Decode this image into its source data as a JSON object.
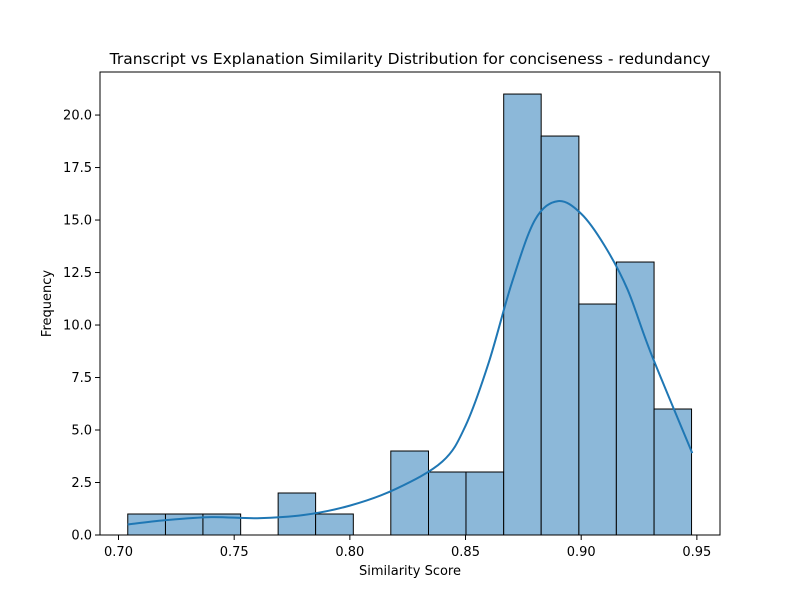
{
  "chart_data": {
    "type": "bar",
    "subtype": "histogram-with-kde",
    "title": "Transcript vs Explanation Similarity Distribution for conciseness - redundancy",
    "xlabel": "Similarity Score",
    "ylabel": "Frequency",
    "xlim": [
      0.692,
      0.96
    ],
    "ylim": [
      0,
      22.05
    ],
    "xticks": [
      0.7,
      0.75,
      0.8,
      0.85,
      0.9,
      0.95
    ],
    "xtick_labels": [
      "0.70",
      "0.75",
      "0.80",
      "0.85",
      "0.90",
      "0.95"
    ],
    "yticks": [
      0,
      2.5,
      5,
      7.5,
      10,
      12.5,
      15,
      17.5,
      20
    ],
    "ytick_labels": [
      "0.0",
      "2.5",
      "5.0",
      "7.5",
      "10.0",
      "12.5",
      "15.0",
      "17.5",
      "20.0"
    ],
    "bins": {
      "edges": [
        0.704,
        0.7203,
        0.7365,
        0.7528,
        0.769,
        0.7852,
        0.8015,
        0.8177,
        0.834,
        0.8502,
        0.8665,
        0.8827,
        0.899,
        0.9152,
        0.9315,
        0.9477
      ],
      "counts": [
        1,
        1,
        1,
        0,
        2,
        1,
        0,
        4,
        3,
        3,
        21,
        19,
        11,
        13,
        6
      ]
    },
    "kde": {
      "x": [
        0.704,
        0.72,
        0.74,
        0.76,
        0.78,
        0.8,
        0.82,
        0.84,
        0.85,
        0.86,
        0.87,
        0.88,
        0.89,
        0.9,
        0.91,
        0.92,
        0.93,
        0.948
      ],
      "y": [
        0.5,
        0.7,
        0.85,
        0.8,
        0.95,
        1.4,
        2.2,
        3.5,
        5.2,
        8.2,
        12.0,
        15.0,
        15.9,
        15.3,
        13.8,
        11.7,
        8.7,
        3.9
      ]
    },
    "grid": false,
    "colors": {
      "bar_fill": "#8cb8d9",
      "bar_edge": "#000000",
      "kde_line": "#1f77b4"
    }
  }
}
